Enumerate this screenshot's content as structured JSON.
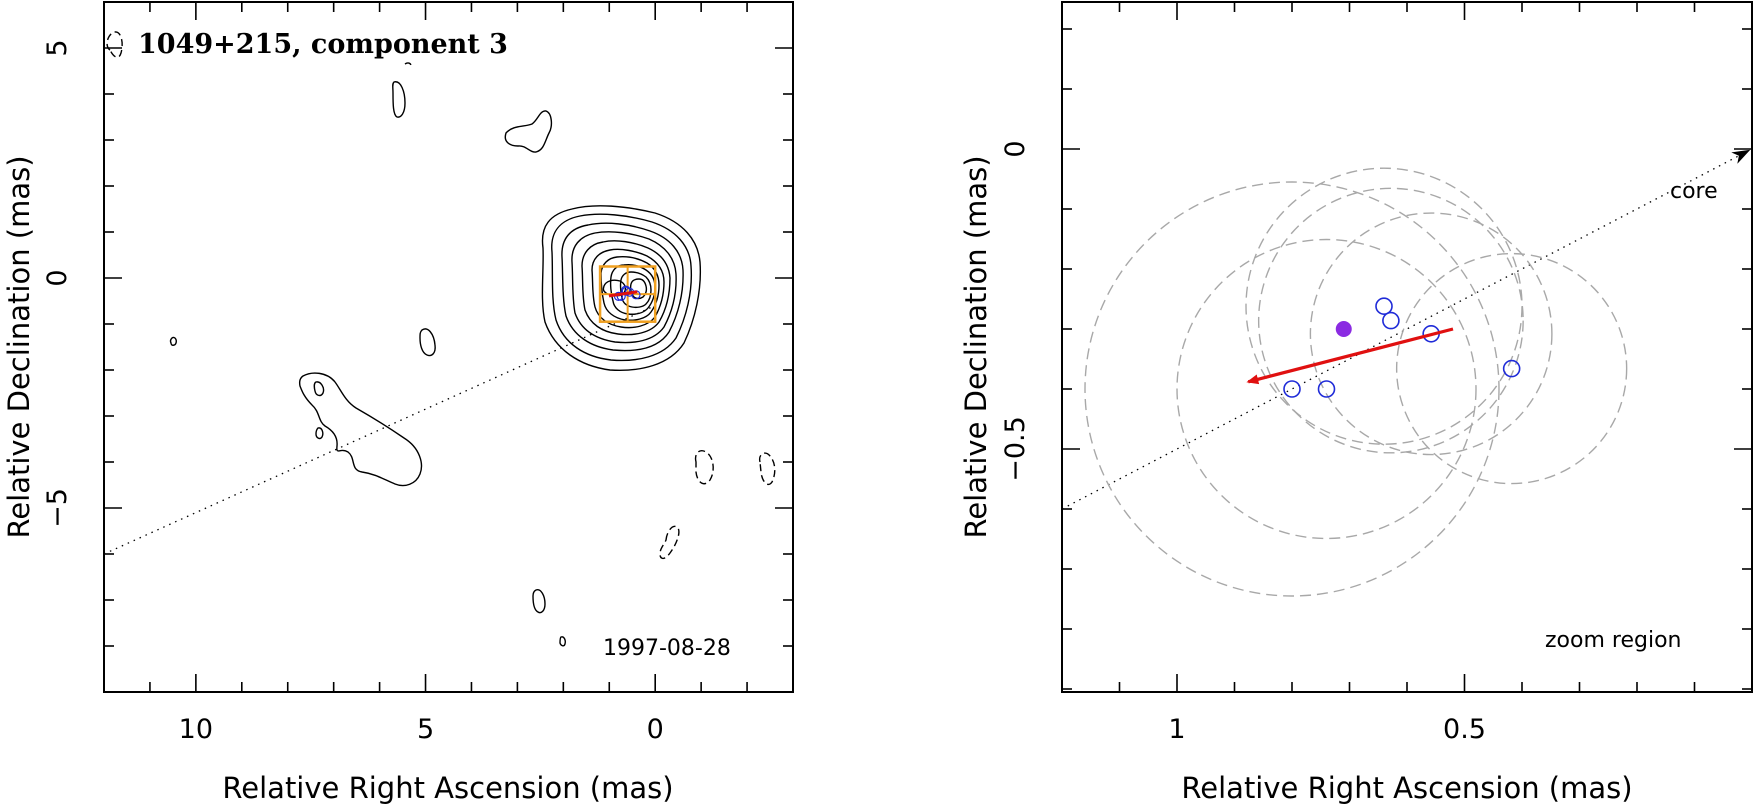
{
  "chart_data": [
    {
      "type": "scatter",
      "panel": "left",
      "title": "1049+215, component 3",
      "annotation": "1997-08-28",
      "xlabel": "Relative Right Ascension (mas)",
      "ylabel": "Relative Declination (mas)",
      "xlim": [
        12,
        -3
      ],
      "ylim": [
        -9,
        6
      ],
      "xticks": [
        10,
        5,
        0
      ],
      "yticks": [
        5,
        0,
        -5
      ],
      "ridge_line": {
        "from": [
          12,
          -6.0
        ],
        "to": [
          0,
          -0.6
        ]
      },
      "zoom_box": {
        "x_range": [
          1.2,
          -0.0
        ],
        "y_range": [
          -0.95,
          0.25
        ],
        "color": "#f0a020"
      },
      "motion_arrow_color": "#e01010",
      "contour_color": "#000000"
    },
    {
      "type": "scatter",
      "panel": "right",
      "annotation": "zoom region",
      "core_label": "core",
      "xlabel": "Relative Right Ascension (mas)",
      "ylabel": "Relative Declination (mas)",
      "xlim": [
        1.2,
        0.0
      ],
      "ylim": [
        -0.905,
        0.245
      ],
      "xticks": [
        1,
        0.5
      ],
      "yticks": [
        0,
        -0.5
      ],
      "ridge_line": {
        "from": [
          1.2,
          -0.6
        ],
        "to": [
          0.0,
          0.0
        ]
      },
      "model_positions": [
        {
          "x": 0.8,
          "y": -0.4
        },
        {
          "x": 0.74,
          "y": -0.4
        },
        {
          "x": 0.64,
          "y": -0.262
        },
        {
          "x": 0.628,
          "y": -0.286
        },
        {
          "x": 0.558,
          "y": -0.308
        },
        {
          "x": 0.418,
          "y": -0.366
        }
      ],
      "error_circles": [
        {
          "x": 0.8,
          "y": -0.4,
          "r": 0.36
        },
        {
          "x": 0.74,
          "y": -0.4,
          "r": 0.26
        },
        {
          "x": 0.64,
          "y": -0.262,
          "r": 0.24
        },
        {
          "x": 0.628,
          "y": -0.286,
          "r": 0.23
        },
        {
          "x": 0.558,
          "y": -0.308,
          "r": 0.21
        },
        {
          "x": 0.418,
          "y": -0.366,
          "r": 0.2
        }
      ],
      "mean_position": {
        "x": 0.71,
        "y": -0.3,
        "color": "#8b2be2"
      },
      "motion_vector": {
        "from": [
          0.52,
          -0.3
        ],
        "to": [
          0.876,
          -0.388
        ],
        "color": "#e01010"
      },
      "marker_color": "#1f2bd8",
      "circle_color": "#a8a8a8"
    }
  ]
}
